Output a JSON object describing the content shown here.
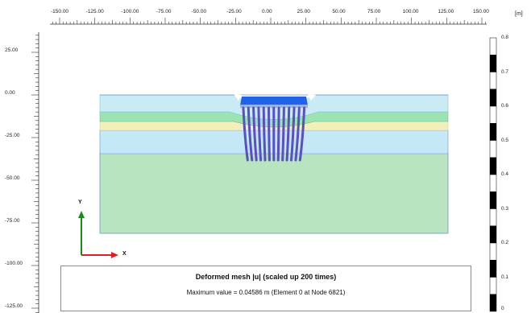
{
  "ruler": {
    "unit": "[m]",
    "x_ticks": [
      "-150.00",
      "-125.00",
      "-100.00",
      "-75.00",
      "-50.00",
      "-25.00",
      "0.00",
      "25.00",
      "50.00",
      "75.00",
      "100.00",
      "125.00",
      "150.00"
    ],
    "y_ticks": [
      "25.00",
      "0.00",
      "-25.00",
      "-50.00",
      "-75.00",
      "-100.00",
      "-125.00"
    ]
  },
  "axes": {
    "x_label": "X",
    "y_label": "Y"
  },
  "legend": {
    "values": [
      "0.8",
      "0.7",
      "0.6",
      "0.5",
      "0.4",
      "0.3",
      "0.2",
      "0.1",
      "0"
    ]
  },
  "info": {
    "title": "Deformed mesh |u| (scaled up 200 times)",
    "max_value": "Maximum value = 0.04586 m (Element 0 at Node 6821)"
  },
  "colors": {
    "layer_top": "#c9ecf4",
    "layer_green": "#9be3b0",
    "layer_yellow": "#f2efb8",
    "layer_blue": "#bfe6f5",
    "layer_base": "#b8e5bf",
    "raft": "#1f63e6",
    "piles": "#5b4fc4",
    "x_axis": "#e02020",
    "y_axis": "#1a8a1a"
  }
}
